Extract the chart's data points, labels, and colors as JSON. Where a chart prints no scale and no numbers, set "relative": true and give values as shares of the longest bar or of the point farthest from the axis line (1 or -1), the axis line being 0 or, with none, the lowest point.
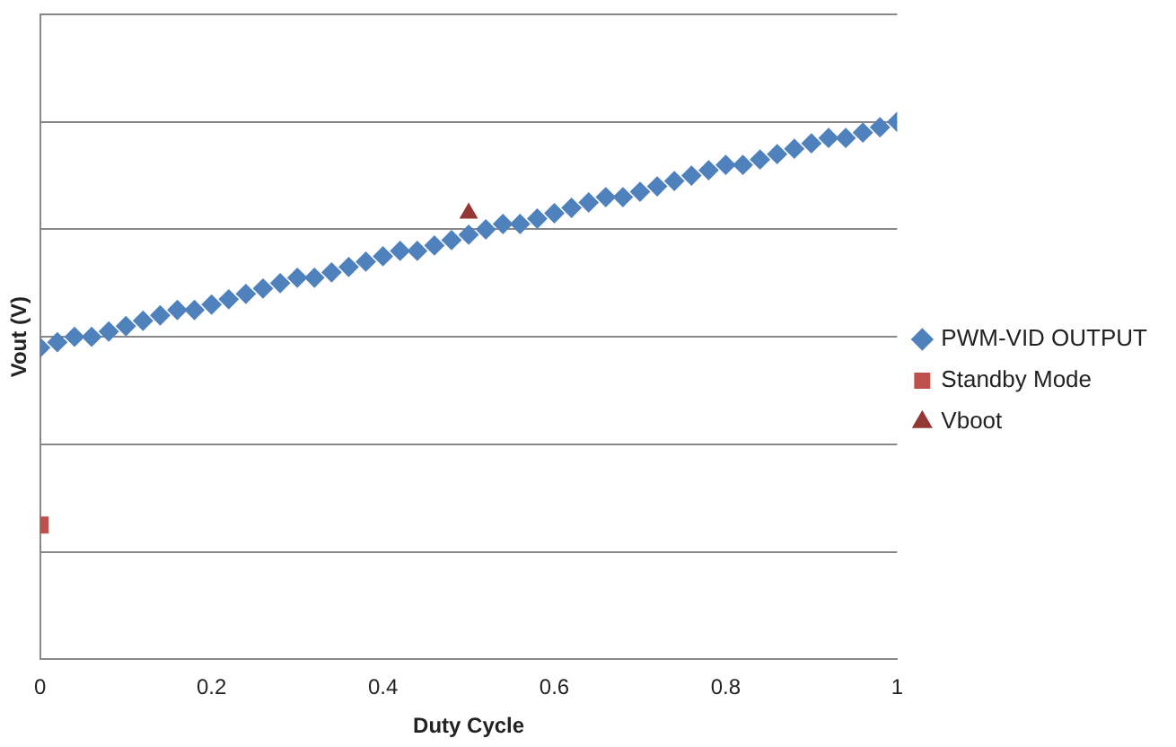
{
  "chart_data": {
    "type": "scatter",
    "xlabel": "Duty Cycle",
    "ylabel": "Vout (V)",
    "relative": true,
    "xlim": [
      0,
      1
    ],
    "xticks": [
      0,
      0.2,
      0.4,
      0.6,
      0.8,
      1
    ],
    "grid": "y",
    "legend": "right",
    "series": [
      {
        "name": "PWM-VID OUTPUT",
        "color": "#4f81bd",
        "marker": "diamond",
        "x": [
          0,
          0.02,
          0.04,
          0.06,
          0.08,
          0.1,
          0.12,
          0.14,
          0.16,
          0.18,
          0.2,
          0.22,
          0.24,
          0.26,
          0.28,
          0.3,
          0.32,
          0.34,
          0.36,
          0.38,
          0.4,
          0.42,
          0.44,
          0.46,
          0.48,
          0.5,
          0.52,
          0.54,
          0.56,
          0.58,
          0.6,
          0.62,
          0.64,
          0.66,
          0.68,
          0.7,
          0.72,
          0.74,
          0.76,
          0.78,
          0.8,
          0.82,
          0.84,
          0.86,
          0.88,
          0.9,
          0.92,
          0.94,
          0.96,
          0.98,
          1
        ],
        "values": [
          0.58,
          0.59,
          0.6,
          0.6,
          0.61,
          0.62,
          0.63,
          0.64,
          0.65,
          0.65,
          0.66,
          0.67,
          0.68,
          0.69,
          0.7,
          0.71,
          0.71,
          0.72,
          0.73,
          0.74,
          0.75,
          0.76,
          0.76,
          0.77,
          0.78,
          0.79,
          0.8,
          0.81,
          0.81,
          0.82,
          0.83,
          0.84,
          0.85,
          0.86,
          0.86,
          0.87,
          0.88,
          0.89,
          0.9,
          0.91,
          0.92,
          0.92,
          0.93,
          0.94,
          0.95,
          0.96,
          0.97,
          0.97,
          0.98,
          0.99,
          1
        ]
      },
      {
        "name": "Standby Mode",
        "color": "#c0504d",
        "marker": "square",
        "x": [
          0
        ],
        "values": [
          0.25
        ]
      },
      {
        "name": "Vboot",
        "color": "#953735",
        "marker": "triangle",
        "x": [
          0.5
        ],
        "values": [
          0.83
        ]
      }
    ]
  }
}
